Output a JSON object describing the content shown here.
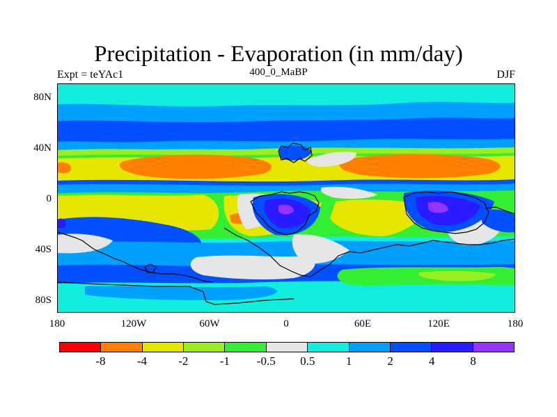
{
  "title": "Precipitation - Evaporation (in mm/day)",
  "subtitle_left": "Expt = teYAc1",
  "subtitle_center": "400_0_MaBP",
  "subtitle_right": "DJF",
  "y_ticks": [
    "80N",
    "40N",
    "0",
    "40S",
    "80S"
  ],
  "x_ticks": [
    "180",
    "120W",
    "60W",
    "0",
    "60E",
    "120E",
    "180"
  ],
  "colorbar": {
    "colors": [
      "#ff0000",
      "#ff8000",
      "#e6e600",
      "#99ee22",
      "#33ee33",
      "#e6e6e6",
      "#11eedd",
      "#00a0ff",
      "#0050ff",
      "#2a1aff",
      "#9933ff"
    ],
    "labels": [
      "-8",
      "-4",
      "-2",
      "-1",
      "-0.5",
      "0.5",
      "1",
      "2",
      "4",
      "8"
    ]
  },
  "palette": {
    "orange": "#ff8000",
    "yellow": "#e6e600",
    "light_green": "#99ee22",
    "green": "#33ee33",
    "grey": "#e6e6e6",
    "cyan": "#11eedd",
    "light_blue": "#00a0ff",
    "blue": "#0050ff",
    "dark_blue": "#2a1aff",
    "purple": "#9933ff"
  }
}
